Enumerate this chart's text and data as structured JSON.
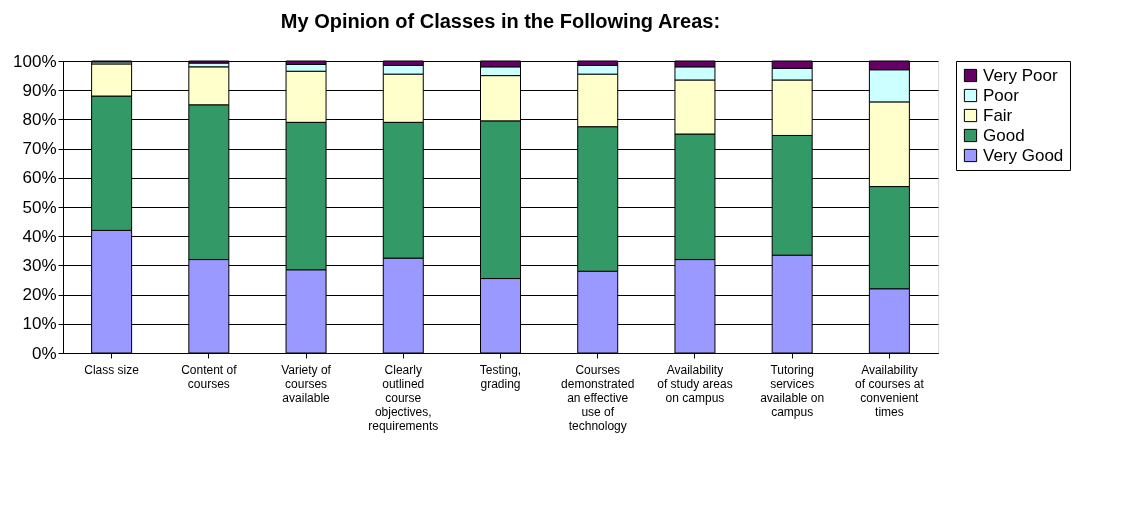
{
  "chart_data": {
    "type": "bar",
    "title": "My Opinion of Classes in the Following Areas:",
    "categories": [
      "Class size",
      "Content of courses",
      "Variety of courses available",
      "Clearly outlined course objectives, requirements",
      "Testing, grading",
      "Courses demonstrated an effective use of technology",
      "Availability of study areas on campus",
      "Tutoring services available on campus",
      "Availability of courses at convenient times"
    ],
    "stacked": true,
    "series": [
      {
        "name": "Very Good",
        "color": "#9999ff",
        "values": [
          42,
          32,
          28.5,
          32.5,
          25.5,
          28,
          32,
          33.5,
          22
        ]
      },
      {
        "name": "Good",
        "color": "#339966",
        "values": [
          46,
          53,
          50.5,
          46.5,
          54,
          49.5,
          43,
          41,
          35
        ]
      },
      {
        "name": "Fair",
        "color": "#ffffcc",
        "values": [
          11,
          13,
          17.5,
          16.5,
          15.5,
          18,
          18.5,
          19,
          29
        ]
      },
      {
        "name": "Poor",
        "color": "#ccffff",
        "values": [
          0.7,
          1.3,
          2.3,
          3,
          3,
          3,
          4.5,
          4,
          11
        ]
      },
      {
        "name": "Very Poor",
        "color": "#660066",
        "values": [
          0.3,
          0.7,
          1.2,
          1.5,
          2,
          1.5,
          2,
          2.5,
          3
        ]
      }
    ],
    "ylim": [
      0,
      100
    ],
    "yticks": [
      {
        "value": 0,
        "label": "0%"
      },
      {
        "value": 10,
        "label": "10%"
      },
      {
        "value": 20,
        "label": "20%"
      },
      {
        "value": 30,
        "label": "30%"
      },
      {
        "value": 40,
        "label": "40%"
      },
      {
        "value": 50,
        "label": "50%"
      },
      {
        "value": 60,
        "label": "60%"
      },
      {
        "value": 70,
        "label": "70%"
      },
      {
        "value": 80,
        "label": "80%"
      },
      {
        "value": 90,
        "label": "90%"
      },
      {
        "value": 100,
        "label": "100%"
      }
    ],
    "grid": "y",
    "legend": "right"
  }
}
